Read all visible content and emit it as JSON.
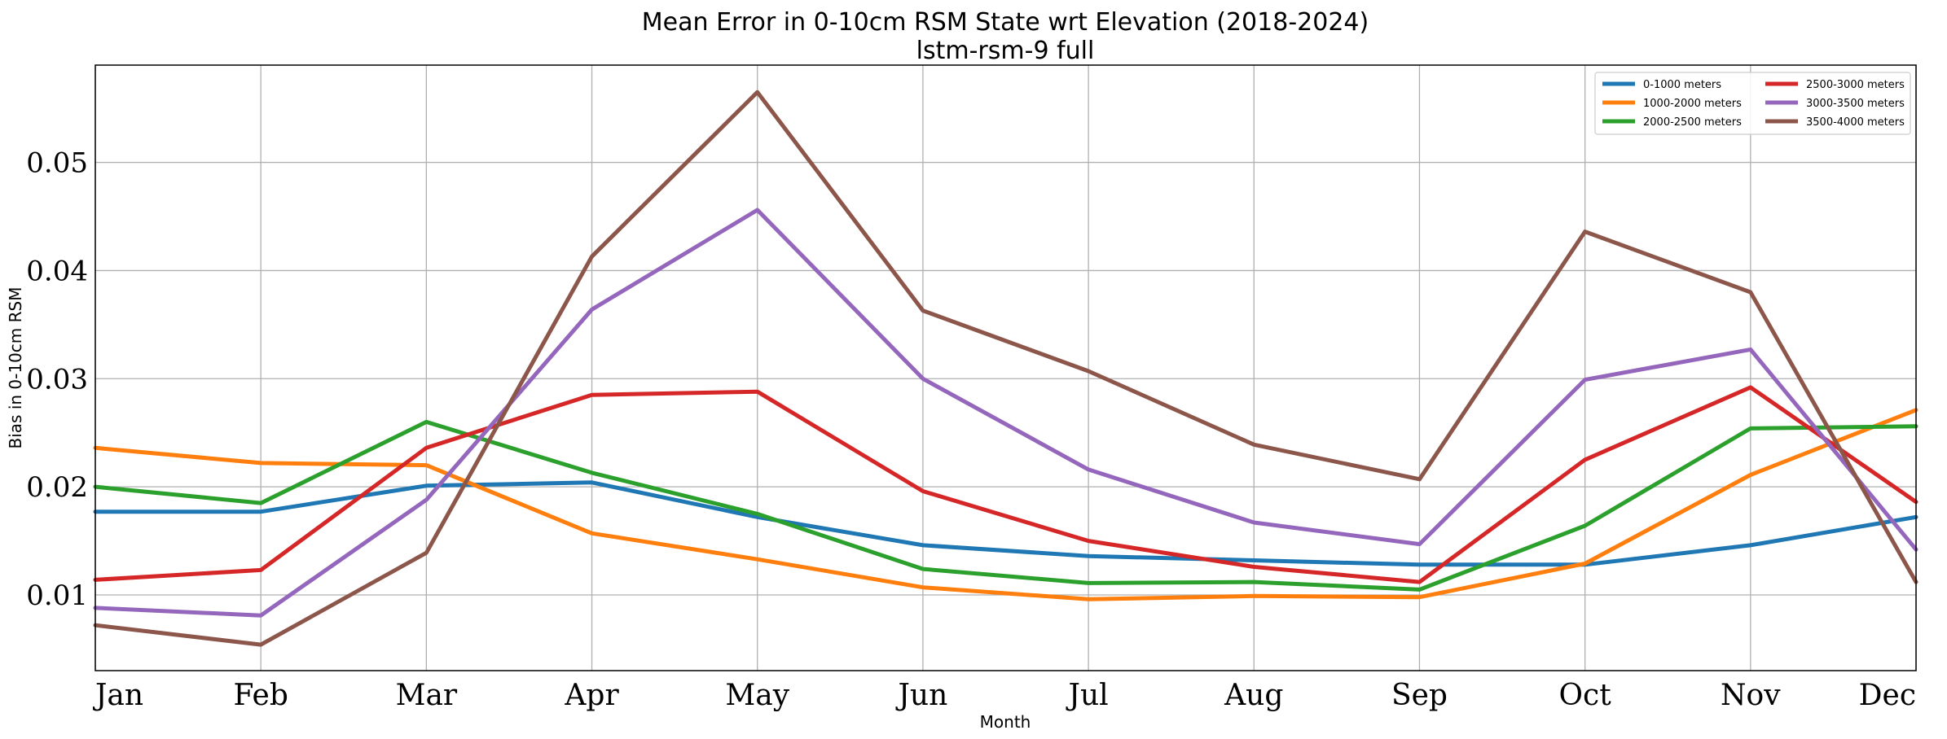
{
  "chart_data": {
    "type": "line",
    "title": "Mean Error in 0-10cm RSM State wrt Elevation (2018-2024)",
    "subtitle": "lstm-rsm-9 full",
    "xlabel": "Month",
    "ylabel": "Bias in 0-10cm RSM",
    "categories": [
      "Jan",
      "Feb",
      "Mar",
      "Apr",
      "May",
      "Jun",
      "Jul",
      "Aug",
      "Sep",
      "Oct",
      "Nov",
      "Dec"
    ],
    "yticks": [
      0.01,
      0.02,
      0.03,
      0.04,
      0.05
    ],
    "ytick_labels": [
      "0.01",
      "0.02",
      "0.03",
      "0.04",
      "0.05"
    ],
    "ylim": [
      0.003,
      0.059
    ],
    "grid": true,
    "legend_position": "top-right",
    "series": [
      {
        "name": "0-1000 meters",
        "color": "#1f77b4",
        "values": [
          0.0177,
          0.0177,
          0.0201,
          0.0204,
          0.0172,
          0.0146,
          0.0136,
          0.0132,
          0.0128,
          0.0128,
          0.0146,
          0.0172
        ]
      },
      {
        "name": "1000-2000 meters",
        "color": "#ff7f0e",
        "values": [
          0.0236,
          0.0222,
          0.022,
          0.0157,
          0.0133,
          0.0107,
          0.0096,
          0.0099,
          0.0098,
          0.0129,
          0.0211,
          0.0271
        ]
      },
      {
        "name": "2000-2500 meters",
        "color": "#2ca02c",
        "values": [
          0.02,
          0.0185,
          0.026,
          0.0213,
          0.0175,
          0.0124,
          0.0111,
          0.0112,
          0.0105,
          0.0164,
          0.0254,
          0.0256
        ]
      },
      {
        "name": "2500-3000 meters",
        "color": "#d62728",
        "values": [
          0.0114,
          0.0123,
          0.0236,
          0.0285,
          0.0288,
          0.0196,
          0.015,
          0.0126,
          0.0112,
          0.0225,
          0.0292,
          0.0186
        ]
      },
      {
        "name": "3000-3500 meters",
        "color": "#9467bd",
        "values": [
          0.0088,
          0.0081,
          0.0188,
          0.0364,
          0.0456,
          0.03,
          0.0216,
          0.0167,
          0.0147,
          0.0299,
          0.0327,
          0.0142
        ]
      },
      {
        "name": "3500-4000 meters",
        "color": "#8c564b",
        "values": [
          0.0072,
          0.0054,
          0.0139,
          0.0413,
          0.0565,
          0.0363,
          0.0307,
          0.0239,
          0.0207,
          0.0436,
          0.038,
          0.0112
        ]
      }
    ]
  }
}
